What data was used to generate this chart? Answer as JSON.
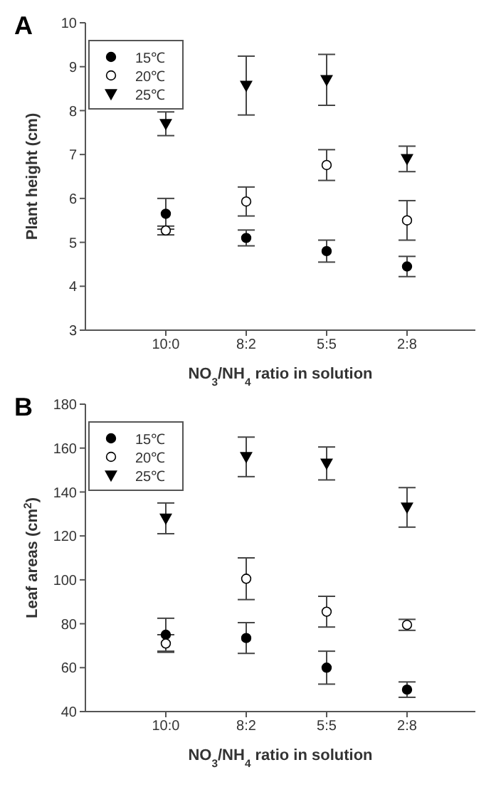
{
  "chart_data": [
    {
      "type": "scatter",
      "title": "A",
      "xlabel": "NO$_{3}$/NH$_{4}$ ratio in solution",
      "ylabel": "Plant height (cm)",
      "categories": [
        "10:0",
        "8:2",
        "5:5",
        "2:8"
      ],
      "ylim": [
        3,
        10
      ],
      "yticks": [
        3,
        4,
        5,
        6,
        7,
        8,
        9,
        10
      ],
      "legend": "top left",
      "grid": false,
      "series": [
        {
          "name": "15℃",
          "color": "#000000",
          "marker": "circle",
          "values": [
            5.65,
            5.1,
            4.8,
            4.45
          ],
          "errors": [
            0.35,
            0.18,
            0.25,
            0.23
          ]
        },
        {
          "name": "20℃",
          "color": "#ffffff",
          "marker": "circle",
          "values": [
            5.27,
            5.93,
            6.76,
            5.5
          ],
          "errors": [
            0.1,
            0.33,
            0.35,
            0.45
          ]
        },
        {
          "name": "25℃",
          "color": "#000000",
          "marker": "triangle",
          "values": [
            7.7,
            8.57,
            8.7,
            6.9
          ],
          "errors": [
            0.27,
            0.67,
            0.58,
            0.29
          ]
        }
      ]
    },
    {
      "type": "scatter",
      "title": "B",
      "xlabel": "NO$_{3}$/NH$_{4}$ ratio in solution",
      "ylabel": "Leaf areas (cm$^{2}$)",
      "categories": [
        "10:0",
        "8:2",
        "5:5",
        "2:8"
      ],
      "ylim": [
        40,
        180
      ],
      "yticks": [
        40,
        60,
        80,
        100,
        120,
        140,
        160,
        180
      ],
      "legend": "top left",
      "grid": false,
      "series": [
        {
          "name": "15℃",
          "color": "#000000",
          "marker": "circle",
          "values": [
            75,
            73.5,
            60,
            50
          ],
          "errors": [
            7.5,
            7,
            7.5,
            3.5
          ]
        },
        {
          "name": "20℃",
          "color": "#ffffff",
          "marker": "circle",
          "values": [
            71,
            100.5,
            85.5,
            79.5
          ],
          "errors": [
            4,
            9.5,
            7,
            2.5
          ]
        },
        {
          "name": "25℃",
          "color": "#000000",
          "marker": "triangle",
          "values": [
            128,
            156,
            153,
            133
          ],
          "errors": [
            7,
            9,
            7.5,
            9
          ]
        }
      ]
    }
  ]
}
